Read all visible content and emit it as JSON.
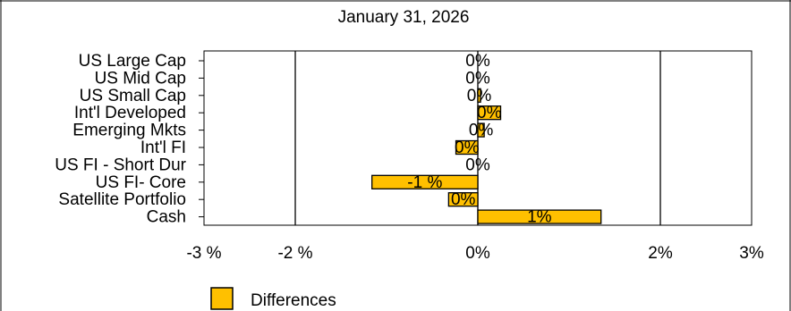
{
  "chart_data": {
    "type": "bar",
    "orientation": "horizontal",
    "title": "January 31, 2026",
    "categories": [
      "US Large Cap",
      "US Mid Cap",
      "US Small Cap",
      "Int'l Developed",
      "Emerging Mkts",
      "Int'l FI",
      "US FI - Short Dur",
      "US FI- Core",
      "Satellite Portfolio",
      "Cash"
    ],
    "series": [
      {
        "name": "Differences",
        "values": [
          0.0,
          0.0,
          0.03,
          0.25,
          0.07,
          -0.24,
          0.0,
          -1.16,
          -0.32,
          1.35
        ],
        "labels": [
          "0%",
          "0%",
          "0%",
          "0%",
          "0%",
          "0%",
          "0%",
          "-1 %",
          "0%",
          "1%"
        ]
      }
    ],
    "xlim": [
      -3,
      3
    ],
    "xticks": [
      -3,
      -2,
      0,
      2,
      3
    ],
    "xtick_labels": [
      "-3 %",
      "-2 %",
      "0%",
      "2%",
      "3%"
    ],
    "gridlines_at": [
      -2,
      0,
      2
    ],
    "grid": true,
    "legend_position": "bottom-left",
    "bar_color": "#FFC000"
  }
}
